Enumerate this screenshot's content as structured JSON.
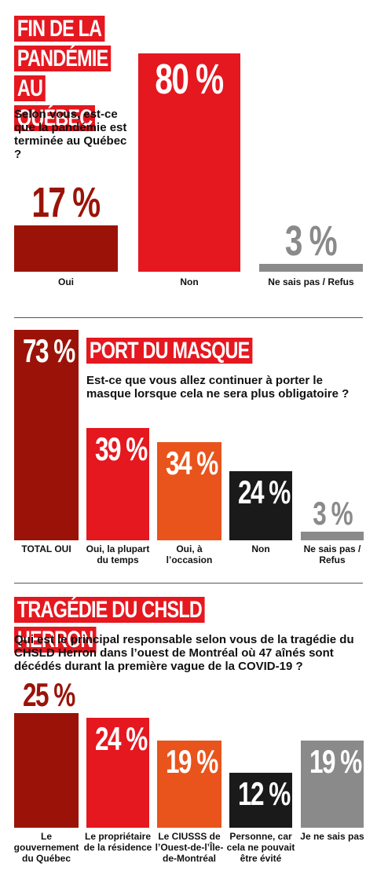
{
  "chart_data": [
    {
      "type": "bar",
      "title": "FIN DE LA PANDÉMIE AU QUÉBEC",
      "subtitle": "Selon vous, est-ce que la pandémie est terminée au Québec ?",
      "categories": [
        "Oui",
        "Non",
        "Ne sais pas / Refus"
      ],
      "values": [
        17,
        80,
        3
      ],
      "value_labels": [
        "17 %",
        "80 %",
        "3 %"
      ],
      "colors": [
        "#9b1308",
        "#e5171f",
        "#8a8a8a"
      ],
      "value_label_positions": [
        "above",
        "inside",
        "above"
      ]
    },
    {
      "type": "bar",
      "title": "PORT DU MASQUE",
      "subtitle": "Est-ce que vous allez continuer à porter le masque lorsque cela ne sera plus obligatoire ?",
      "categories": [
        "TOTAL OUI",
        "Oui, la plupart du temps",
        "Oui, à l’occasion",
        "Non",
        "Ne sais pas / Refus"
      ],
      "values": [
        73,
        39,
        34,
        24,
        3
      ],
      "value_labels": [
        "73 %",
        "39 %",
        "34 %",
        "24 %",
        "3 %"
      ],
      "colors": [
        "#9b1308",
        "#e5171f",
        "#e8541c",
        "#1a1a1a",
        "#8a8a8a"
      ],
      "value_label_positions": [
        "inside",
        "inside",
        "inside",
        "inside",
        "above"
      ]
    },
    {
      "type": "bar",
      "title": "TRAGÉDIE DU CHSLD HERRON",
      "subtitle": "Qui est le principal responsable selon vous de la tragédie du CHSLD Herron dans l’ouest de Montréal où 47 aînés sont décédés durant la première vague de la COVID-19 ?",
      "categories": [
        "Le gouvernement du Québec",
        "Le propriétaire de la résidence",
        "Le CIUSSS de l’Ouest-de-l’Île-de-Montréal",
        "Personne, car cela ne pouvait être évité",
        "Je ne sais pas"
      ],
      "values": [
        25,
        24,
        19,
        12,
        19
      ],
      "value_labels": [
        "25 %",
        "24 %",
        "19 %",
        "12 %",
        "19 %"
      ],
      "colors": [
        "#9b1308",
        "#e5171f",
        "#e8541c",
        "#1a1a1a",
        "#8a8a8a"
      ],
      "value_label_positions": [
        "above",
        "inside",
        "inside",
        "inside",
        "inside"
      ]
    }
  ]
}
